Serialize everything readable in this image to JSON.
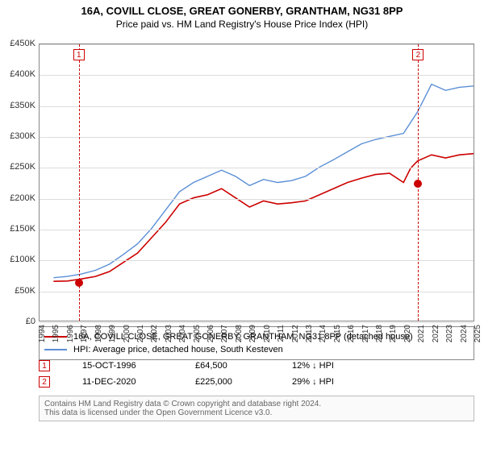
{
  "title": "16A, COVILL CLOSE, GREAT GONERBY, GRANTHAM, NG31 8PP",
  "subtitle": "Price paid vs. HM Land Registry's House Price Index (HPI)",
  "chart": {
    "type": "line",
    "ylim": [
      0,
      450000
    ],
    "ytick_step": 50000,
    "ytick_labels": [
      "£0",
      "£50K",
      "£100K",
      "£150K",
      "£200K",
      "£250K",
      "£300K",
      "£350K",
      "£400K",
      "£450K"
    ],
    "x_years": [
      1994,
      1995,
      1996,
      1997,
      1998,
      1999,
      2000,
      2001,
      2002,
      2003,
      2004,
      2005,
      2006,
      2007,
      2008,
      2009,
      2010,
      2011,
      2012,
      2013,
      2014,
      2015,
      2016,
      2017,
      2018,
      2019,
      2020,
      2021,
      2022,
      2023,
      2024,
      2025
    ],
    "background_color": "#ffffff",
    "grid_color": "#dddddd",
    "border_color": "#888888",
    "series": [
      {
        "name": "price_paid",
        "color": "#cc0000",
        "width": 1.6,
        "data": [
          [
            1995,
            64000
          ],
          [
            1996,
            64500
          ],
          [
            1997,
            68000
          ],
          [
            1998,
            72000
          ],
          [
            1999,
            80000
          ],
          [
            2000,
            95000
          ],
          [
            2001,
            110000
          ],
          [
            2002,
            135000
          ],
          [
            2003,
            160000
          ],
          [
            2004,
            190000
          ],
          [
            2005,
            200000
          ],
          [
            2006,
            205000
          ],
          [
            2007,
            215000
          ],
          [
            2008,
            200000
          ],
          [
            2009,
            185000
          ],
          [
            2010,
            195000
          ],
          [
            2011,
            190000
          ],
          [
            2012,
            192000
          ],
          [
            2013,
            195000
          ],
          [
            2014,
            205000
          ],
          [
            2015,
            215000
          ],
          [
            2016,
            225000
          ],
          [
            2017,
            232000
          ],
          [
            2018,
            238000
          ],
          [
            2019,
            240000
          ],
          [
            2020,
            225000
          ],
          [
            2020.5,
            248000
          ],
          [
            2021,
            260000
          ],
          [
            2022,
            270000
          ],
          [
            2023,
            265000
          ],
          [
            2024,
            270000
          ],
          [
            2025,
            272000
          ]
        ]
      },
      {
        "name": "hpi",
        "color": "#5b8fd6",
        "width": 1.4,
        "data": [
          [
            1995,
            70000
          ],
          [
            1996,
            72000
          ],
          [
            1997,
            76000
          ],
          [
            1998,
            82000
          ],
          [
            1999,
            92000
          ],
          [
            2000,
            108000
          ],
          [
            2001,
            125000
          ],
          [
            2002,
            150000
          ],
          [
            2003,
            180000
          ],
          [
            2004,
            210000
          ],
          [
            2005,
            225000
          ],
          [
            2006,
            235000
          ],
          [
            2007,
            245000
          ],
          [
            2008,
            235000
          ],
          [
            2009,
            220000
          ],
          [
            2010,
            230000
          ],
          [
            2011,
            225000
          ],
          [
            2012,
            228000
          ],
          [
            2013,
            235000
          ],
          [
            2014,
            250000
          ],
          [
            2015,
            262000
          ],
          [
            2016,
            275000
          ],
          [
            2017,
            288000
          ],
          [
            2018,
            295000
          ],
          [
            2019,
            300000
          ],
          [
            2020,
            305000
          ],
          [
            2021,
            340000
          ],
          [
            2022,
            385000
          ],
          [
            2023,
            375000
          ],
          [
            2024,
            380000
          ],
          [
            2025,
            382000
          ]
        ]
      }
    ],
    "markers": [
      {
        "id": "1",
        "year": 1996.8,
        "value": 64500,
        "color": "#cc0000"
      },
      {
        "id": "2",
        "year": 2020.95,
        "value": 225000,
        "color": "#cc0000"
      }
    ]
  },
  "legend": {
    "items": [
      {
        "color": "#cc0000",
        "label": "16A, COVILL CLOSE, GREAT GONERBY, GRANTHAM, NG31 8PP (detached house)"
      },
      {
        "color": "#5b8fd6",
        "label": "HPI: Average price, detached house, South Kesteven"
      }
    ]
  },
  "transactions": [
    {
      "id": "1",
      "date": "15-OCT-1996",
      "price": "£64,500",
      "delta": "12% ↓ HPI"
    },
    {
      "id": "2",
      "date": "11-DEC-2020",
      "price": "£225,000",
      "delta": "29% ↓ HPI"
    }
  ],
  "footer": {
    "line1": "Contains HM Land Registry data © Crown copyright and database right 2024.",
    "line2": "This data is licensed under the Open Government Licence v3.0."
  }
}
